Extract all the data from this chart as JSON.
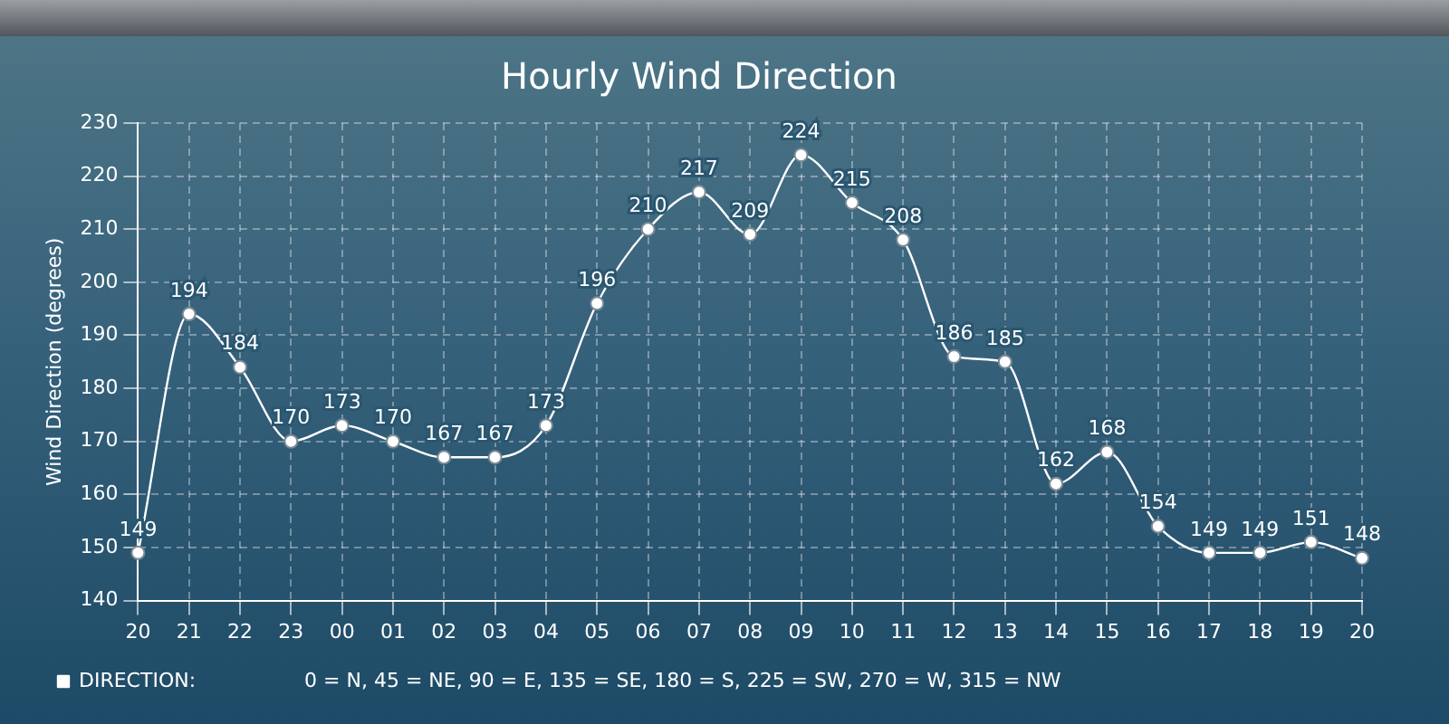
{
  "chart_data": {
    "type": "line",
    "title": "Hourly Wind Direction",
    "ylabel": "Wind Direction (degrees)",
    "categories": [
      "20",
      "21",
      "22",
      "23",
      "00",
      "01",
      "02",
      "03",
      "04",
      "05",
      "06",
      "07",
      "08",
      "09",
      "10",
      "11",
      "12",
      "13",
      "14",
      "15",
      "16",
      "17",
      "18",
      "19",
      "20"
    ],
    "series": [
      {
        "name": "DIRECTION:",
        "color": "#ffffff",
        "values": [
          149,
          194,
          184,
          170,
          173,
          170,
          167,
          167,
          173,
          196,
          210,
          217,
          209,
          224,
          215,
          208,
          186,
          185,
          162,
          168,
          154,
          149,
          149,
          151,
          148
        ]
      }
    ],
    "ylim": [
      140,
      230
    ],
    "yticks": [
      140,
      150,
      160,
      170,
      180,
      190,
      200,
      210,
      220,
      230
    ],
    "grid": true,
    "legend": "bottom",
    "marker": "circle",
    "line_style": "solid",
    "data_labels": true,
    "annotations": [
      "0 = N, 45 = NE, 90 = E, 135 = SE, 180 = S, 225 = SW, 270 = W, 315 = NW"
    ]
  }
}
